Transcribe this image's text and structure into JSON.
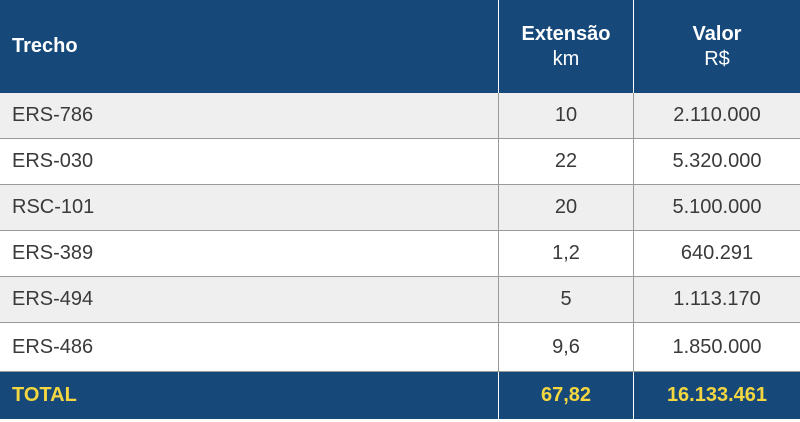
{
  "header": {
    "col1": "Trecho",
    "col2": "Extensão",
    "col2_unit": "km",
    "col3": "Valor",
    "col3_unit": "R$"
  },
  "rows": [
    {
      "trecho": "ERS-786",
      "extensao": "10",
      "valor": "2.110.000"
    },
    {
      "trecho": "ERS-030",
      "extensao": "22",
      "valor": "5.320.000"
    },
    {
      "trecho": "RSC-101",
      "extensao": "20",
      "valor": "5.100.000"
    },
    {
      "trecho": "ERS-389",
      "extensao": "1,2",
      "valor": "640.291"
    },
    {
      "trecho": "ERS-494",
      "extensao": "5",
      "valor": "1.113.170"
    },
    {
      "trecho": "ERS-486",
      "extensao": "9,6",
      "valor": "1.850.000"
    }
  ],
  "total": {
    "label": "TOTAL",
    "extensao": "67,82",
    "valor": "16.133.461"
  },
  "colors": {
    "header_bg": "#16497a",
    "total_text": "#f3d640",
    "stripe": "#efefef"
  }
}
